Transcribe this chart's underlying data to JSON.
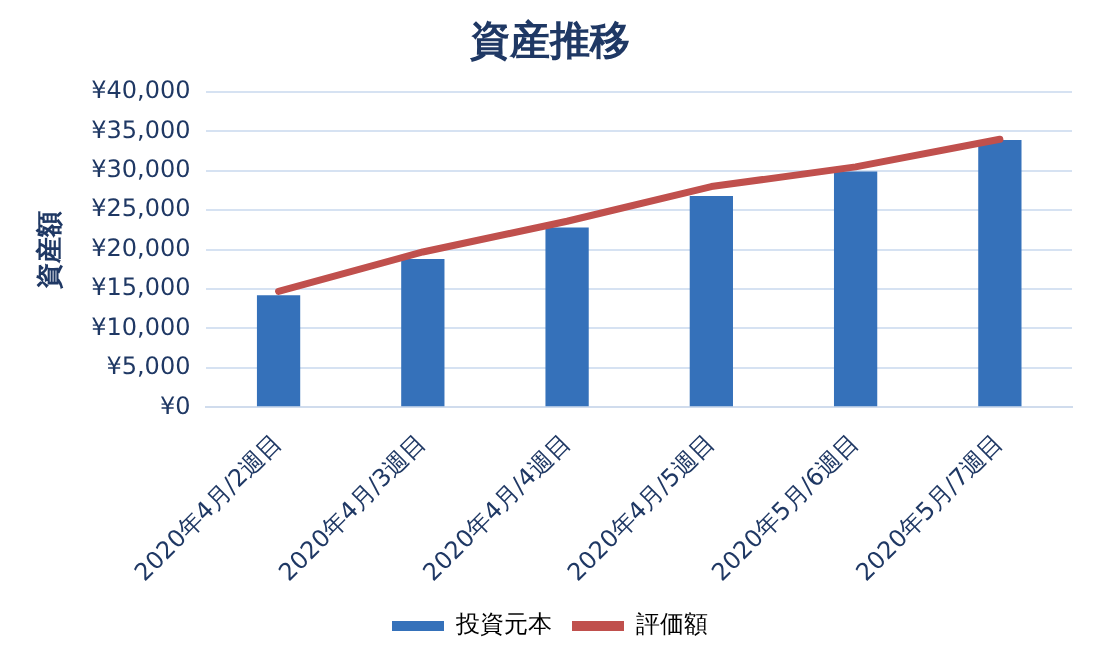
{
  "chart_data": {
    "type": "bar",
    "title": "資産推移",
    "ylabel": "資産額",
    "categories": [
      "2020年4月/2週目",
      "2020年4月/3週目",
      "2020年4月/4週目",
      "2020年4月/5週目",
      "2020年5月/6週目",
      "2020年5月/7週目"
    ],
    "series": [
      {
        "name": "投資元本",
        "color": "#3571ba",
        "values": [
          14200,
          18800,
          22800,
          26800,
          29900,
          33900
        ]
      },
      {
        "name": "評価額",
        "type": "line",
        "color": "#c0504d",
        "values": [
          14700,
          19700,
          23600,
          28000,
          30500,
          34000
        ]
      }
    ],
    "ylim": [
      0,
      40000
    ],
    "yticks": [
      {
        "value": 0,
        "label": "¥0"
      },
      {
        "value": 5000,
        "label": "¥5,000"
      },
      {
        "value": 10000,
        "label": "¥10,000"
      },
      {
        "value": 15000,
        "label": "¥15,000"
      },
      {
        "value": 20000,
        "label": "¥20,000"
      },
      {
        "value": 25000,
        "label": "¥25,000"
      },
      {
        "value": 30000,
        "label": "¥30,000"
      },
      {
        "value": 35000,
        "label": "¥35,000"
      },
      {
        "value": 40000,
        "label": "¥40,000"
      }
    ],
    "grid": "y",
    "legend": "bottom",
    "marker": "none"
  }
}
